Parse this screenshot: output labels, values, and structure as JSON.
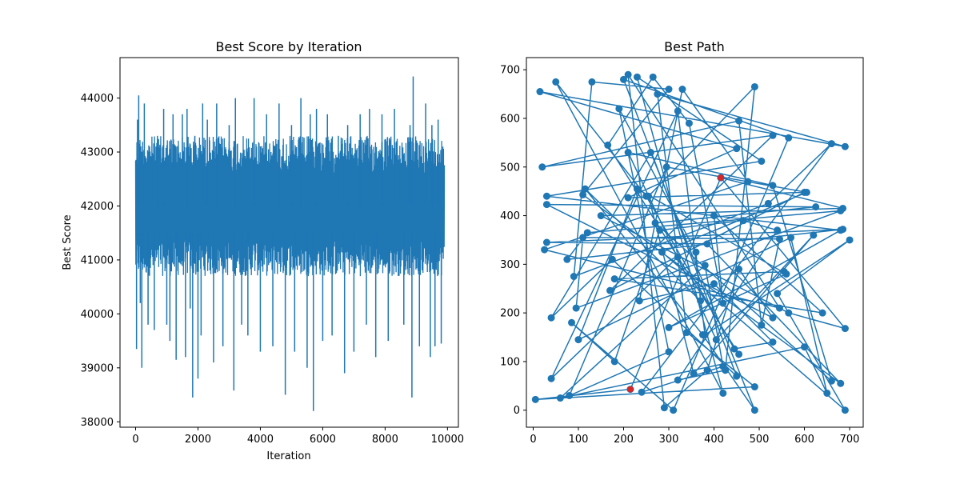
{
  "chart_data": [
    {
      "type": "line",
      "title": "Best Score by Iteration",
      "xlabel": "Iteration",
      "ylabel": "Best Score",
      "xlim": [
        -500,
        10350
      ],
      "ylim": [
        37900,
        44750
      ],
      "xticks": [
        0,
        2000,
        4000,
        6000,
        8000,
        10000
      ],
      "yticks": [
        38000,
        39000,
        40000,
        41000,
        42000,
        43000,
        44000
      ],
      "color": "#1f77b4",
      "series": [
        {
          "x_start": 0,
          "x_end": 9900,
          "band_high": 43300,
          "band_low": 40700,
          "spikes": [
            {
              "x": 30,
              "y": 39350
            },
            {
              "x": 60,
              "y": 43600
            },
            {
              "x": 100,
              "y": 44050
            },
            {
              "x": 150,
              "y": 40200
            },
            {
              "x": 200,
              "y": 39000
            },
            {
              "x": 280,
              "y": 43900
            },
            {
              "x": 400,
              "y": 39800
            },
            {
              "x": 600,
              "y": 39700
            },
            {
              "x": 700,
              "y": 43300
            },
            {
              "x": 900,
              "y": 43800
            },
            {
              "x": 1000,
              "y": 39800
            },
            {
              "x": 1100,
              "y": 39500
            },
            {
              "x": 1200,
              "y": 43700
            },
            {
              "x": 1300,
              "y": 39150
            },
            {
              "x": 1500,
              "y": 43700
            },
            {
              "x": 1600,
              "y": 39200
            },
            {
              "x": 1650,
              "y": 43800
            },
            {
              "x": 1750,
              "y": 40100
            },
            {
              "x": 1830,
              "y": 38450
            },
            {
              "x": 1900,
              "y": 43300
            },
            {
              "x": 2000,
              "y": 38800
            },
            {
              "x": 2100,
              "y": 39600
            },
            {
              "x": 2150,
              "y": 43900
            },
            {
              "x": 2300,
              "y": 43600
            },
            {
              "x": 2500,
              "y": 39100
            },
            {
              "x": 2600,
              "y": 43900
            },
            {
              "x": 2800,
              "y": 39400
            },
            {
              "x": 3000,
              "y": 43500
            },
            {
              "x": 3150,
              "y": 38580
            },
            {
              "x": 3200,
              "y": 44000
            },
            {
              "x": 3400,
              "y": 39800
            },
            {
              "x": 3600,
              "y": 39600
            },
            {
              "x": 3800,
              "y": 44000
            },
            {
              "x": 4000,
              "y": 39300
            },
            {
              "x": 4200,
              "y": 43700
            },
            {
              "x": 4400,
              "y": 39400
            },
            {
              "x": 4600,
              "y": 43900
            },
            {
              "x": 4800,
              "y": 38500
            },
            {
              "x": 5000,
              "y": 43500
            },
            {
              "x": 5100,
              "y": 39300
            },
            {
              "x": 5300,
              "y": 44000
            },
            {
              "x": 5500,
              "y": 39000
            },
            {
              "x": 5600,
              "y": 43700
            },
            {
              "x": 5700,
              "y": 38200
            },
            {
              "x": 5800,
              "y": 43800
            },
            {
              "x": 6000,
              "y": 39500
            },
            {
              "x": 6150,
              "y": 43700
            },
            {
              "x": 6300,
              "y": 39600
            },
            {
              "x": 6500,
              "y": 43300
            },
            {
              "x": 6700,
              "y": 38900
            },
            {
              "x": 6800,
              "y": 43500
            },
            {
              "x": 7000,
              "y": 39300
            },
            {
              "x": 7200,
              "y": 43700
            },
            {
              "x": 7400,
              "y": 39800
            },
            {
              "x": 7500,
              "y": 43800
            },
            {
              "x": 7700,
              "y": 39200
            },
            {
              "x": 7900,
              "y": 43700
            },
            {
              "x": 8100,
              "y": 39500
            },
            {
              "x": 8300,
              "y": 43800
            },
            {
              "x": 8600,
              "y": 39800
            },
            {
              "x": 8800,
              "y": 43500
            },
            {
              "x": 8860,
              "y": 38450
            },
            {
              "x": 8900,
              "y": 44400
            },
            {
              "x": 9100,
              "y": 39400
            },
            {
              "x": 9300,
              "y": 43900
            },
            {
              "x": 9450,
              "y": 39200
            },
            {
              "x": 9500,
              "y": 43500
            },
            {
              "x": 9600,
              "y": 39400
            },
            {
              "x": 9700,
              "y": 43600
            },
            {
              "x": 9800,
              "y": 39450
            },
            {
              "x": 9850,
              "y": 43100
            }
          ]
        }
      ]
    },
    {
      "type": "line",
      "title": "Best Path",
      "xlim": [
        -15,
        730
      ],
      "ylim": [
        -35,
        725
      ],
      "xticks": [
        0,
        100,
        200,
        300,
        400,
        500,
        600,
        700
      ],
      "yticks": [
        0,
        100,
        200,
        300,
        400,
        500,
        600,
        700
      ],
      "color": "#1f77b4",
      "highlight_color": "#d62728",
      "highlight_points": [
        [
          415,
          478
        ],
        [
          215,
          43
        ]
      ],
      "series": [
        {
          "points": [
            [
              415,
              478
            ],
            [
              685,
              415
            ],
            [
              150,
              400
            ],
            [
              565,
              200
            ],
            [
              690,
              168
            ],
            [
              415,
              478
            ],
            [
              415,
              478
            ],
            [
              215,
              43
            ],
            [
              5,
              22
            ],
            [
              490,
              48
            ],
            [
              340,
              160
            ],
            [
              275,
              650
            ],
            [
              690,
              542
            ],
            [
              15,
              655
            ],
            [
              450,
              538
            ],
            [
              210,
              437
            ],
            [
              600,
              448
            ],
            [
              170,
              246
            ],
            [
              530,
              565
            ],
            [
              20,
              500
            ],
            [
              455,
              595
            ],
            [
              505,
              175
            ],
            [
              545,
              352
            ],
            [
              110,
              355
            ],
            [
              95,
              210
            ],
            [
              680,
              410
            ],
            [
              120,
              365
            ],
            [
              75,
              310
            ],
            [
              685,
              372
            ],
            [
              30,
              345
            ],
            [
              385,
              342
            ],
            [
              680,
              55
            ],
            [
              110,
              443
            ],
            [
              300,
              660
            ],
            [
              130,
              675
            ],
            [
              90,
              275
            ],
            [
              520,
              425
            ],
            [
              660,
              548
            ],
            [
              240,
              37
            ],
            [
              420,
              90
            ],
            [
              380,
              298
            ],
            [
              60,
              25
            ],
            [
              600,
              130
            ],
            [
              650,
              35
            ],
            [
              570,
              355
            ],
            [
              100,
              145
            ],
            [
              230,
              455
            ],
            [
              560,
              280
            ],
            [
              300,
              170
            ],
            [
              680,
              370
            ],
            [
              30,
              440
            ],
            [
              505,
              512
            ],
            [
              230,
              685
            ],
            [
              420,
              35
            ],
            [
              50,
              675
            ],
            [
              250,
              440
            ],
            [
              445,
              126
            ],
            [
              530,
              140
            ],
            [
              400,
              260
            ],
            [
              235,
              225
            ],
            [
              330,
              660
            ],
            [
              475,
              470
            ],
            [
              25,
              330
            ],
            [
              545,
              210
            ],
            [
              210,
              690
            ],
            [
              290,
              5
            ],
            [
              385,
              82
            ],
            [
              455,
              290
            ],
            [
              530,
              190
            ],
            [
              30,
              423
            ],
            [
              625,
              418
            ],
            [
              270,
              385
            ],
            [
              660,
              60
            ],
            [
              530,
              462
            ],
            [
              210,
              530
            ],
            [
              405,
              145
            ],
            [
              620,
              360
            ],
            [
              355,
              75
            ],
            [
              255,
              440
            ],
            [
              490,
              665
            ],
            [
              425,
              82
            ],
            [
              320,
              62
            ],
            [
              540,
              370
            ],
            [
              465,
              390
            ],
            [
              280,
              370
            ],
            [
              180,
              100
            ],
            [
              85,
              180
            ],
            [
              310,
              0
            ],
            [
              565,
              560
            ],
            [
              200,
              680
            ],
            [
              450,
              70
            ],
            [
              175,
              310
            ],
            [
              40,
              190
            ],
            [
              260,
              530
            ],
            [
              490,
              0
            ],
            [
              375,
              155
            ],
            [
              115,
              455
            ],
            [
              370,
              225
            ],
            [
              360,
              325
            ],
            [
              190,
              620
            ],
            [
              300,
              120
            ],
            [
              80,
              30
            ],
            [
              295,
              500
            ],
            [
              605,
              448
            ],
            [
              285,
              325
            ],
            [
              690,
              0
            ],
            [
              540,
              240
            ],
            [
              700,
              350
            ],
            [
              380,
              155
            ],
            [
              320,
              615
            ],
            [
              40,
              65
            ],
            [
              320,
              315
            ],
            [
              455,
              115
            ],
            [
              165,
              545
            ],
            [
              265,
              685
            ],
            [
              345,
              590
            ],
            [
              420,
              220
            ],
            [
              400,
              400
            ],
            [
              640,
              200
            ],
            [
              180,
              270
            ],
            [
              555,
              285
            ]
          ]
        }
      ]
    }
  ]
}
